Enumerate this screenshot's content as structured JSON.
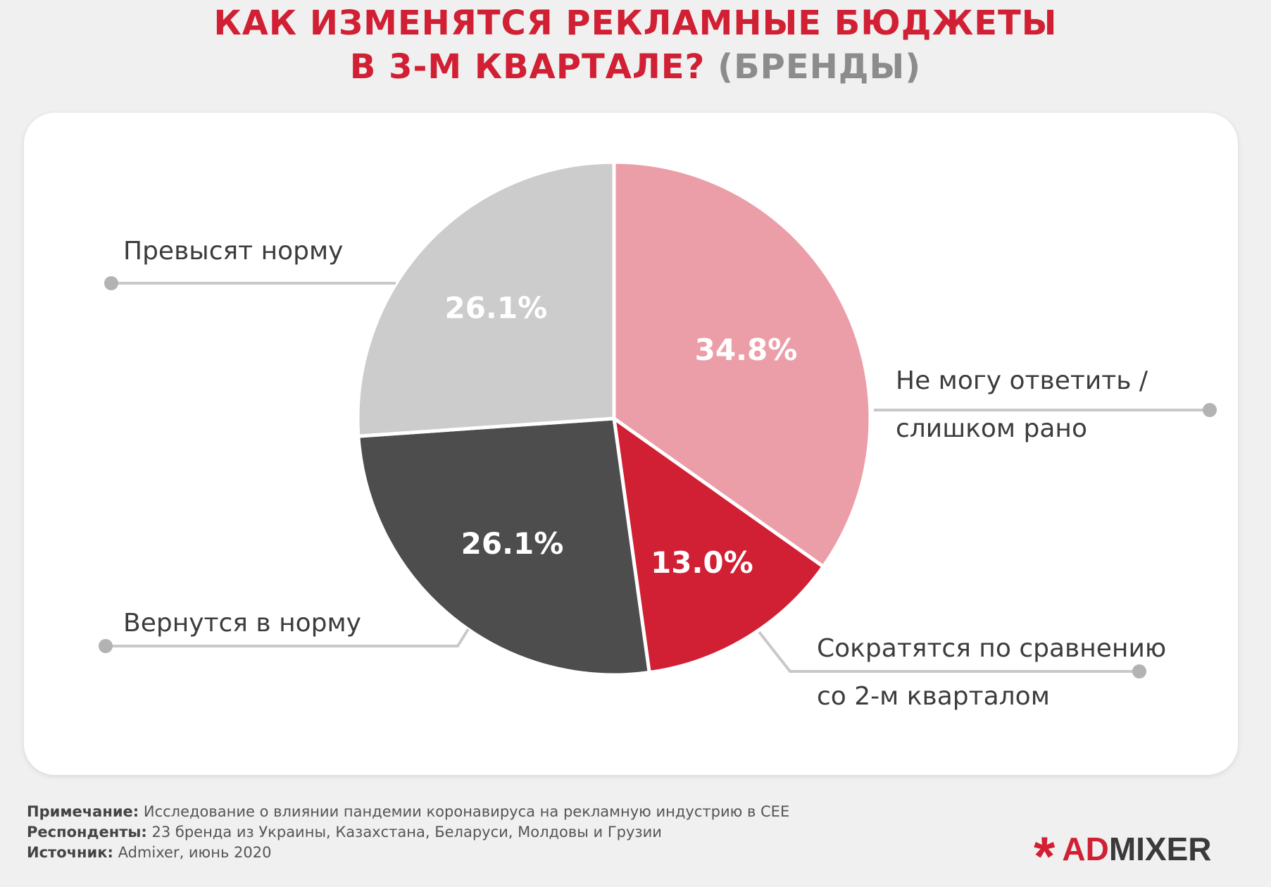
{
  "header": {
    "title_line1": "КАК ИЗМЕНЯТСЯ РЕКЛАМНЫЕ БЮДЖЕТЫ",
    "title_line2_main": "В 3-М КВАРТАЛЕ?",
    "title_line2_sub": "(БРЕНДЫ)"
  },
  "chart_data": {
    "type": "pie",
    "slices": [
      {
        "label_lines": [
          "Не могу ответить /",
          "слишком рано"
        ],
        "value": 34.8,
        "value_label": "34.8%",
        "color": "#eb9ea8"
      },
      {
        "label_lines": [
          "Сократятся по сравнению",
          "со 2-м кварталом"
        ],
        "value": 13.0,
        "value_label": "13.0%",
        "color": "#d11f34"
      },
      {
        "label_lines": [
          "Вернутся в норму"
        ],
        "value": 26.1,
        "value_label": "26.1%",
        "color": "#4d4d4d"
      },
      {
        "label_lines": [
          "Превысят норму"
        ],
        "value": 26.1,
        "value_label": "26.1%",
        "color": "#cccccc"
      }
    ],
    "start_position": "12 o'clock",
    "direction": "clockwise",
    "legend": "callout labels with leader lines"
  },
  "footer": {
    "note_label": "Примечание:",
    "note_text": "Исследование о влиянии пандемии коронавируса на рекламную индустрию в CEE",
    "respondents_label": "Респонденты:",
    "respondents_text": "23 бренда из Украины, Казахстана, Беларуси, Молдовы и Грузии",
    "source_label": "Источник:",
    "source_text": "Admixer, июнь 2020"
  },
  "logo": {
    "star": "*",
    "part1": "AD",
    "part2": "MIXER"
  }
}
